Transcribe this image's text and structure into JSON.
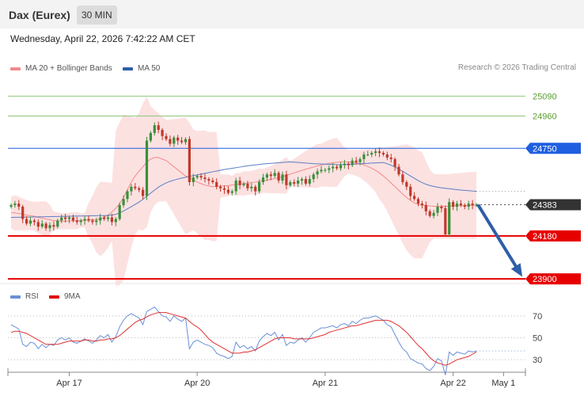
{
  "header": {
    "title": "Dax (Eurex)",
    "timeframe": "30 MIN"
  },
  "datetime": "Wednesday, April 22, 2026 7:42:22 AM CET",
  "legend": {
    "ma20_label": "MA 20 + Bollinger Bands",
    "ma50_label": "MA 50"
  },
  "copyright": "Research © 2026 Trading Central",
  "rsi_legend": {
    "rsi_label": "RSI",
    "ma9_label": "9MA"
  },
  "colors": {
    "up": "#3a8f3a",
    "down": "#c0392b",
    "bb_fill": "#fbdcdc",
    "ma20": "#f08a8a",
    "ma50": "#5a7fc4",
    "resistance_blue": "#1f5ee0",
    "support_red": "#e60000",
    "green_level": "#8fc77a",
    "current": "#333333",
    "arrow": "#2e5ea8",
    "rsi": "#6a8fd8",
    "rsi_ma": "#e03030"
  },
  "chart_data": [
    {
      "type": "candlestick",
      "title": "Dax (Eurex)",
      "ylim": [
        23880,
        25200
      ],
      "x_ticks": [
        "Apr 17",
        "Apr 20",
        "Apr 21",
        "Apr 22",
        "May 1"
      ],
      "levels": [
        {
          "value": 25090,
          "label": "25090",
          "style": "green_line"
        },
        {
          "value": 24960,
          "label": "24960",
          "style": "green_line"
        },
        {
          "value": 24750,
          "label": "24750",
          "style": "blue_line"
        },
        {
          "value": 24383,
          "label": "24383",
          "style": "current_price"
        },
        {
          "value": 24180,
          "label": "24180",
          "style": "red_line"
        },
        {
          "value": 23900,
          "label": "23900",
          "style": "red_line"
        }
      ],
      "forecast_arrow": {
        "from": 24383,
        "to": 23900
      },
      "close": [
        24380,
        24390,
        24370,
        24290,
        24260,
        24280,
        24270,
        24240,
        24260,
        24230,
        24250,
        24240,
        24280,
        24300,
        24290,
        24300,
        24280,
        24270,
        24280,
        24290,
        24280,
        24270,
        24280,
        24300,
        24290,
        24300,
        24270,
        24290,
        24380,
        24420,
        24470,
        24500,
        24490,
        24480,
        24440,
        24800,
        24850,
        24900,
        24870,
        24830,
        24810,
        24780,
        24820,
        24800,
        24790,
        24810,
        24530,
        24560,
        24570,
        24560,
        24550,
        24540,
        24530,
        24500,
        24490,
        24480,
        24460,
        24470,
        24540,
        24510,
        24520,
        24490,
        24500,
        24470,
        24530,
        24560,
        24580,
        24570,
        24590,
        24540,
        24580,
        24510,
        24530,
        24520,
        24540,
        24550,
        24520,
        24550,
        24580,
        24600,
        24610,
        24610,
        24620,
        24630,
        24620,
        24640,
        24650,
        24640,
        24670,
        24660,
        24680,
        24710,
        24710,
        24720,
        24730,
        24720,
        24710,
        24690,
        24680,
        24630,
        24580,
        24530,
        24500,
        24440,
        24420,
        24390,
        24380,
        24340,
        24310,
        24330,
        24370,
        24360,
        24190,
        24400,
        24370,
        24390,
        24380,
        24370,
        24390,
        24380,
        24383
      ],
      "series": [
        {
          "name": "MA 20",
          "values": [
            24330,
            24330,
            24325,
            24320,
            24315,
            24312,
            24308,
            24300,
            24296,
            24290,
            24285,
            24280,
            24278,
            24276,
            24275,
            24277,
            24278,
            24279,
            24280,
            24281,
            24283,
            24284,
            24285,
            24290,
            24300,
            24315,
            24335,
            24360,
            24390,
            24430,
            24480,
            24530,
            24570,
            24600,
            24630,
            24660,
            24680,
            24690,
            24690,
            24680,
            24670,
            24650,
            24630,
            24610,
            24590,
            24570,
            24560,
            24545,
            24530,
            24520,
            24510,
            24505,
            24500,
            24502,
            24504,
            24506,
            24508,
            24511,
            24514,
            24517,
            24521,
            24524,
            24527,
            24530,
            24534,
            24538,
            24542,
            24547,
            24553,
            24559,
            24566,
            24574,
            24582,
            24590,
            24598,
            24606,
            24614,
            24621,
            24628,
            24635,
            24641,
            24647,
            24652,
            24656,
            24659,
            24661,
            24662,
            24662,
            24660,
            24656,
            24650,
            24642,
            24632,
            24620,
            24606,
            24590,
            24570,
            24548,
            24524,
            24500,
            24476,
            24452,
            24430,
            24411,
            24395,
            24385,
            24380,
            24378,
            24375,
            24373,
            24372,
            24372,
            24372,
            24373,
            24374,
            24375,
            24376,
            24377,
            24378,
            24379,
            24380
          ]
        },
        {
          "name": "MA 50",
          "values": [
            24300,
            24301,
            24301,
            24302,
            24302,
            24303,
            24303,
            24304,
            24304,
            24305,
            24305,
            24306,
            24306,
            24307,
            24307,
            24308,
            24308,
            24309,
            24309,
            24310,
            24310,
            24311,
            24311,
            24312,
            24312,
            24313,
            24315,
            24320,
            24330,
            24342,
            24356,
            24370,
            24385,
            24400,
            24418,
            24438,
            24458,
            24478,
            24497,
            24512,
            24525,
            24535,
            24543,
            24550,
            24556,
            24561,
            24567,
            24572,
            24577,
            24582,
            24587,
            24592,
            24597,
            24602,
            24607,
            24612,
            24616,
            24620,
            24624,
            24628,
            24632,
            24636,
            24639,
            24642,
            24645,
            24648,
            24650,
            24652,
            24654,
            24656,
            24658,
            24660,
            24662,
            24660,
            24658,
            24656,
            24654,
            24652,
            24650,
            24649,
            24648,
            24647,
            24646,
            24645,
            24644,
            24644,
            24645,
            24646,
            24647,
            24648,
            24650,
            24651,
            24652,
            24654,
            24655,
            24656,
            24657,
            24650,
            24640,
            24628,
            24615,
            24600,
            24585,
            24570,
            24555,
            24540,
            24527,
            24516,
            24508,
            24502,
            24497,
            24493,
            24490,
            24487,
            24484,
            24481,
            24478,
            24476,
            24474,
            24472,
            24470
          ]
        }
      ]
    },
    {
      "type": "line",
      "title": "RSI",
      "ylim": [
        20,
        80
      ],
      "y_ticks": [
        70,
        50,
        30
      ],
      "series": [
        {
          "name": "RSI",
          "values": [
            62,
            60,
            58,
            44,
            42,
            46,
            45,
            40,
            44,
            41,
            44,
            43,
            48,
            50,
            48,
            50,
            46,
            45,
            47,
            49,
            47,
            45,
            48,
            52,
            50,
            53,
            46,
            51,
            60,
            66,
            70,
            72,
            70,
            68,
            62,
            74,
            76,
            78,
            74,
            70,
            69,
            65,
            70,
            67,
            65,
            68,
            40,
            46,
            48,
            46,
            44,
            43,
            41,
            36,
            34,
            33,
            31,
            33,
            46,
            41,
            43,
            40,
            42,
            38,
            47,
            51,
            54,
            52,
            55,
            48,
            53,
            43,
            46,
            45,
            48,
            50,
            46,
            50,
            55,
            57,
            59,
            59,
            60,
            61,
            59,
            62,
            63,
            61,
            65,
            63,
            66,
            68,
            68,
            69,
            70,
            68,
            66,
            62,
            60,
            53,
            46,
            40,
            37,
            31,
            29,
            27,
            26,
            22,
            20,
            24,
            31,
            29,
            16,
            37,
            34,
            37,
            36,
            35,
            38,
            37,
            38
          ]
        },
        {
          "name": "9MA",
          "values": [
            55,
            56,
            56,
            55,
            54,
            52,
            50,
            48,
            46,
            44,
            44,
            44,
            44,
            45,
            46,
            47,
            47,
            47,
            47,
            48,
            48,
            47,
            47,
            48,
            48,
            49,
            49,
            50,
            52,
            55,
            58,
            61,
            64,
            66,
            67,
            69,
            71,
            72,
            73,
            73,
            73,
            72,
            71,
            70,
            69,
            68,
            65,
            62,
            60,
            57,
            53,
            49,
            46,
            44,
            42,
            40,
            38,
            36,
            36,
            36,
            37,
            37,
            38,
            39,
            41,
            43,
            45,
            47,
            49,
            50,
            50,
            50,
            50,
            49,
            49,
            49,
            49,
            49,
            50,
            51,
            52,
            53,
            55,
            56,
            57,
            58,
            59,
            60,
            61,
            61,
            62,
            63,
            64,
            65,
            66,
            66,
            66,
            66,
            65,
            63,
            61,
            58,
            55,
            51,
            47,
            43,
            40,
            36,
            32,
            29,
            27,
            26,
            25,
            26,
            28,
            30,
            31,
            32,
            33,
            35,
            37
          ]
        }
      ]
    }
  ]
}
